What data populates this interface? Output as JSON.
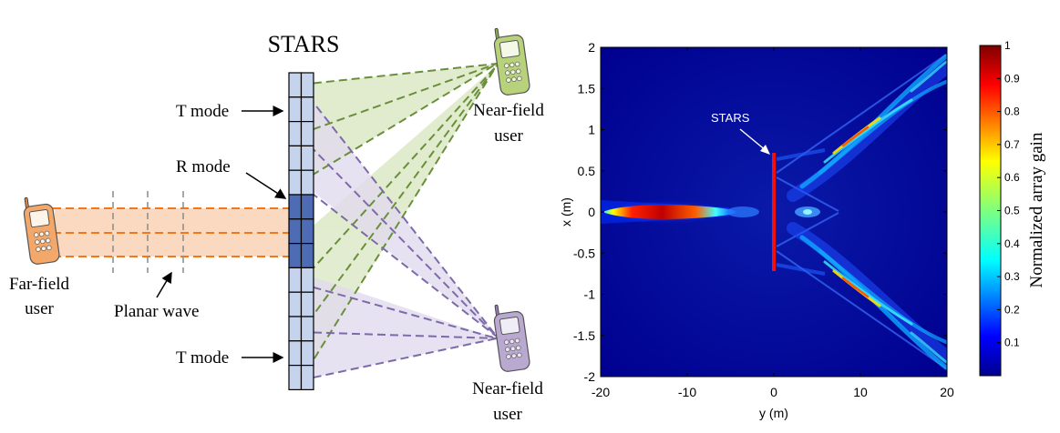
{
  "diagram": {
    "title": "STARS",
    "labels": {
      "t_mode_top": "T mode",
      "r_mode": "R mode",
      "t_mode_bottom": "T mode",
      "far_field_user": [
        "Far-field",
        "user"
      ],
      "planar_wave": "Planar wave",
      "near_field_user_top": [
        "Near-field",
        "user"
      ],
      "near_field_user_bottom": [
        "Near-field",
        "user"
      ]
    },
    "colors": {
      "stars_cell": "#c5d3ec",
      "stars_r_cell": "#4e6cb3",
      "green_beam": "#6a8f3a",
      "green_fill": "#d8e6c0",
      "purple_beam": "#7d6aa8",
      "purple_fill": "#e1dbee",
      "orange_wave": "#f07820",
      "orange_fill": "#fbd9c0",
      "phone_far": "#f3a86a",
      "phone_near_top": "#b7d27a",
      "phone_near_bottom": "#b9a8cf"
    },
    "icons": [
      "phone-icon",
      "arrow-icon"
    ]
  },
  "heatmap": {
    "chart_data": {
      "type": "heatmap",
      "title": "",
      "xlabel": "y (m)",
      "ylabel": "x (m)",
      "xlim": [
        -20,
        20
      ],
      "ylim": [
        -2,
        2
      ],
      "x_ticks": [
        "-20",
        "-10",
        "0",
        "10",
        "20"
      ],
      "y_ticks": [
        "2",
        "1.5",
        "1",
        "0.5",
        "0",
        "-0.5",
        "-1",
        "-1.5",
        "-2"
      ],
      "colorbar": {
        "label": "Normalized array gain",
        "range": [
          0,
          1
        ],
        "ticks": [
          "1",
          "0.9",
          "0.8",
          "0.7",
          "0.6",
          "0.5",
          "0.4",
          "0.3",
          "0.2",
          "0.1"
        ]
      },
      "annotation": "STARS",
      "stars_segment": {
        "y": 0,
        "x_range": [
          -0.7,
          0.7
        ]
      },
      "colormap": "jet",
      "features": [
        {
          "kind": "focused-beam",
          "y_range": [
            -20,
            -4
          ],
          "x": 0,
          "peak_y": -12,
          "peak_gain": 1.0
        },
        {
          "kind": "transmitted-focus",
          "y": 10.5,
          "x": 0.85,
          "peak_gain": 0.75
        },
        {
          "kind": "transmitted-focus",
          "y": 10.5,
          "x": -0.85,
          "peak_gain": 0.75
        },
        {
          "kind": "crossing-point",
          "y": 4,
          "x": 0,
          "peak_gain": 0.35
        }
      ]
    }
  }
}
